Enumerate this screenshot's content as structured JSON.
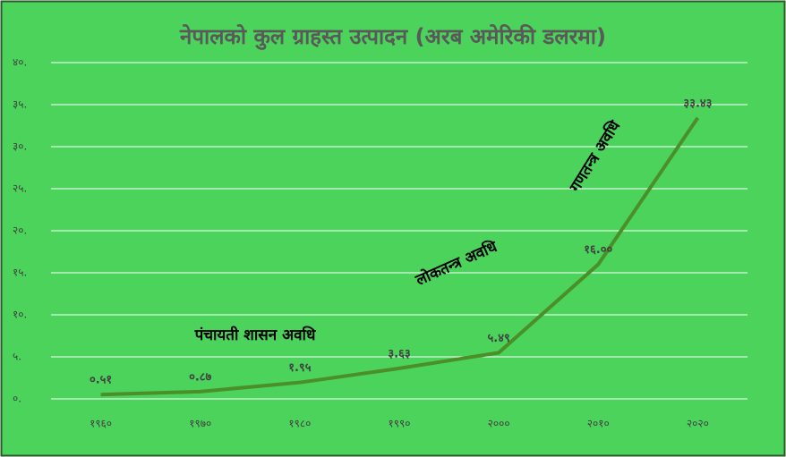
{
  "chart_data": {
    "type": "line",
    "title": "नेपालको कुल ग्राहस्त उत्पादन (अरब अमेरिकी डलरमा)",
    "categories": [
      "१९६०",
      "१९७०",
      "१९८०",
      "१९९०",
      "२०००",
      "२०१०",
      "२०२०"
    ],
    "series": [
      {
        "color": "#4b8f29",
        "values": [
          0.51,
          0.87,
          1.95,
          3.63,
          5.49,
          16.0,
          33.43
        ],
        "value_labels": [
          "०.५१",
          "०.८७",
          "१.९५",
          "३.६३",
          "५.४९",
          "१६.००",
          "३३.४३"
        ]
      }
    ],
    "ylim": [
      0,
      40
    ],
    "yticks": [
      {
        "value": 0,
        "label": "०."
      },
      {
        "value": 5,
        "label": "५."
      },
      {
        "value": 10,
        "label": "१०."
      },
      {
        "value": 15,
        "label": "१५."
      },
      {
        "value": 20,
        "label": "२०."
      },
      {
        "value": 25,
        "label": "२५."
      },
      {
        "value": 30,
        "label": "३०."
      },
      {
        "value": 35,
        "label": "३५."
      },
      {
        "value": 40,
        "label": "४०."
      }
    ],
    "grid": true,
    "annotations": [
      "पंचायती शासन अवधि",
      "लोकतन्त्र अवधि",
      "गणतन्त्र अवधि"
    ]
  }
}
